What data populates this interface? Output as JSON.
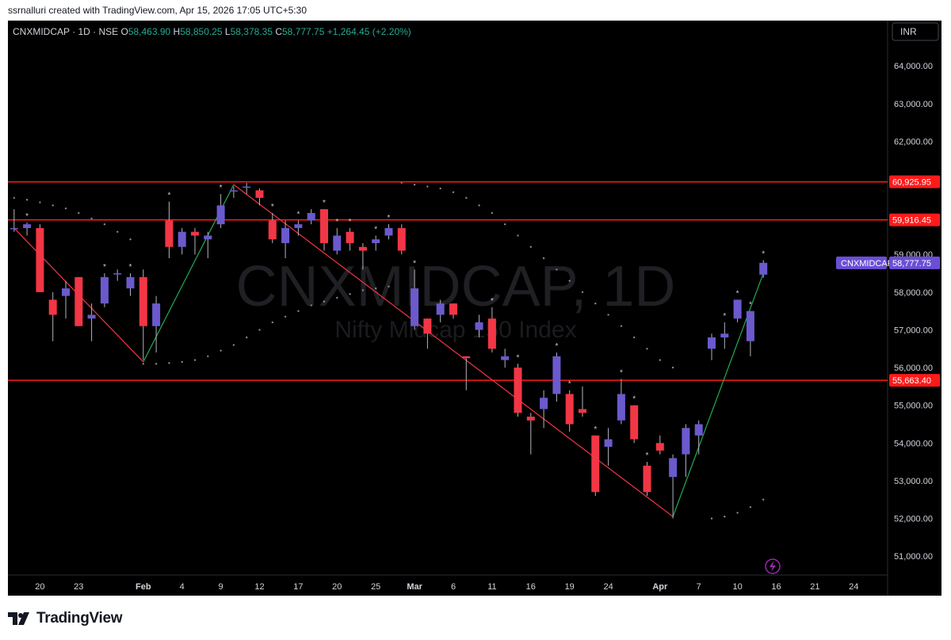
{
  "header": {
    "attribution": "ssrnalluri created with TradingView.com, Apr 15, 2026 17:05 UTC+5:30"
  },
  "legend": {
    "symbol_line": "CNXMIDCAP · 1D · NSE",
    "open_label": "O",
    "open": "58,463.90",
    "high_label": "H",
    "high": "58,850.25",
    "low_label": "L",
    "low": "58,378.35",
    "close_label": "C",
    "close": "58,777.75",
    "change": "+1,264.45 (+2.20%)"
  },
  "currency": "INR",
  "watermark": {
    "title": "CNXMIDCAP, 1D",
    "subtitle": "Nifty Midcap 150 Index"
  },
  "footer": {
    "brand": "TradingView",
    "logo_icon": "tradingview-logo-icon"
  },
  "colors": {
    "background": "#000000",
    "up_candle": "#6a5acd",
    "down_candle": "#f23645",
    "wick": "#b2b5be",
    "level_line": "#ff1a1a",
    "down_trend": "#f23645",
    "up_trend": "#22ab55",
    "psar": "#8a8a8a",
    "marker": "#cfcfcf",
    "axis_text": "#d1d4dc",
    "last_price_bg": "#6a4fd6"
  },
  "chart_data": {
    "type": "candlestick",
    "y_range": [
      50500,
      65200
    ],
    "y_ticks": [
      {
        "v": 51000,
        "label": "51,000.00"
      },
      {
        "v": 52000,
        "label": "52,000.00"
      },
      {
        "v": 53000,
        "label": "53,000.00"
      },
      {
        "v": 54000,
        "label": "54,000.00"
      },
      {
        "v": 55000,
        "label": "55,000.00"
      },
      {
        "v": 56000,
        "label": "56,000.00"
      },
      {
        "v": 57000,
        "label": "57,000.00"
      },
      {
        "v": 58000,
        "label": "58,000.00"
      },
      {
        "v": 59000,
        "label": "59,000.00"
      },
      {
        "v": 60000,
        "label": "60,000.00"
      },
      {
        "v": 61000,
        "label": "61,000.00"
      },
      {
        "v": 62000,
        "label": "62,000.00"
      },
      {
        "v": 63000,
        "label": "63,000.00"
      },
      {
        "v": 64000,
        "label": "64,000.00"
      }
    ],
    "x_ticks": [
      {
        "i": 2,
        "label": "20",
        "bold": false
      },
      {
        "i": 5,
        "label": "23",
        "bold": false
      },
      {
        "i": 10,
        "label": "Feb",
        "bold": true
      },
      {
        "i": 13,
        "label": "4",
        "bold": false
      },
      {
        "i": 16,
        "label": "9",
        "bold": false
      },
      {
        "i": 19,
        "label": "12",
        "bold": false
      },
      {
        "i": 22,
        "label": "17",
        "bold": false
      },
      {
        "i": 25,
        "label": "20",
        "bold": false
      },
      {
        "i": 28,
        "label": "25",
        "bold": false
      },
      {
        "i": 31,
        "label": "Mar",
        "bold": true
      },
      {
        "i": 34,
        "label": "6",
        "bold": false
      },
      {
        "i": 37,
        "label": "11",
        "bold": false
      },
      {
        "i": 40,
        "label": "16",
        "bold": false
      },
      {
        "i": 43,
        "label": "19",
        "bold": false
      },
      {
        "i": 46,
        "label": "24",
        "bold": false
      },
      {
        "i": 50,
        "label": "Apr",
        "bold": true
      },
      {
        "i": 53,
        "label": "7",
        "bold": false
      },
      {
        "i": 56,
        "label": "10",
        "bold": false
      },
      {
        "i": 59,
        "label": "16",
        "bold": false
      },
      {
        "i": 62,
        "label": "21",
        "bold": false
      },
      {
        "i": 65,
        "label": "24",
        "bold": false
      }
    ],
    "levels": [
      {
        "value": 60925.95,
        "label": "60,925.95"
      },
      {
        "value": 59916.45,
        "label": "59,916.45"
      },
      {
        "value": 55663.4,
        "label": "55,663.40"
      }
    ],
    "last_price": {
      "value": 58777.75,
      "label": "58,777.75",
      "name": "CNXMIDCAP"
    },
    "candles": [
      {
        "o": 59700,
        "h": 60200,
        "l": 59600,
        "c": 59700
      },
      {
        "o": 59700,
        "h": 59850,
        "l": 59500,
        "c": 59800
      },
      {
        "o": 59700,
        "h": 59800,
        "l": 58100,
        "c": 58000
      },
      {
        "o": 57800,
        "h": 58000,
        "l": 56700,
        "c": 57400
      },
      {
        "o": 57900,
        "h": 58300,
        "l": 57300,
        "c": 58100
      },
      {
        "o": 58400,
        "h": 58400,
        "l": 57100,
        "c": 57100
      },
      {
        "o": 57300,
        "h": 57700,
        "l": 56700,
        "c": 57400
      },
      {
        "o": 57700,
        "h": 58500,
        "l": 57600,
        "c": 58400
      },
      {
        "o": 58500,
        "h": 58600,
        "l": 58300,
        "c": 58500
      },
      {
        "o": 58100,
        "h": 58500,
        "l": 57900,
        "c": 58400
      },
      {
        "o": 58400,
        "h": 58600,
        "l": 56200,
        "c": 57100
      },
      {
        "o": 57100,
        "h": 57900,
        "l": 56400,
        "c": 57700
      },
      {
        "o": 59900,
        "h": 60400,
        "l": 58900,
        "c": 59200
      },
      {
        "o": 59200,
        "h": 59700,
        "l": 59000,
        "c": 59600
      },
      {
        "o": 59600,
        "h": 59700,
        "l": 59000,
        "c": 59500
      },
      {
        "o": 59400,
        "h": 59600,
        "l": 58900,
        "c": 59500
      },
      {
        "o": 59800,
        "h": 60600,
        "l": 59700,
        "c": 60300
      },
      {
        "o": 60700,
        "h": 60800,
        "l": 60500,
        "c": 60700
      },
      {
        "o": 60800,
        "h": 60900,
        "l": 60600,
        "c": 60800
      },
      {
        "o": 60700,
        "h": 60750,
        "l": 60300,
        "c": 60500
      },
      {
        "o": 59900,
        "h": 60100,
        "l": 59300,
        "c": 59400
      },
      {
        "o": 59300,
        "h": 59900,
        "l": 58900,
        "c": 59700
      },
      {
        "o": 59700,
        "h": 59900,
        "l": 59500,
        "c": 59800
      },
      {
        "o": 59900,
        "h": 60200,
        "l": 59800,
        "c": 60100
      },
      {
        "o": 60200,
        "h": 60200,
        "l": 59100,
        "c": 59300
      },
      {
        "o": 59100,
        "h": 59700,
        "l": 59000,
        "c": 59500
      },
      {
        "o": 59600,
        "h": 59700,
        "l": 59100,
        "c": 59300
      },
      {
        "o": 59200,
        "h": 59300,
        "l": 58600,
        "c": 59100
      },
      {
        "o": 59300,
        "h": 59500,
        "l": 59100,
        "c": 59400
      },
      {
        "o": 59500,
        "h": 59800,
        "l": 59400,
        "c": 59700
      },
      {
        "o": 59700,
        "h": 59800,
        "l": 59000,
        "c": 59100
      },
      {
        "o": 57100,
        "h": 58600,
        "l": 57000,
        "c": 58100
      },
      {
        "o": 57300,
        "h": 57300,
        "l": 56500,
        "c": 56900
      },
      {
        "o": 57400,
        "h": 57800,
        "l": 57200,
        "c": 57700
      },
      {
        "o": 57700,
        "h": 57700,
        "l": 57300,
        "c": 57400
      },
      {
        "o": 56300,
        "h": 56300,
        "l": 55400,
        "c": 56250
      },
      {
        "o": 57000,
        "h": 57400,
        "l": 56800,
        "c": 57200
      },
      {
        "o": 57300,
        "h": 57600,
        "l": 56400,
        "c": 56500
      },
      {
        "o": 56200,
        "h": 56500,
        "l": 56000,
        "c": 56300
      },
      {
        "o": 56000,
        "h": 56100,
        "l": 54700,
        "c": 54800
      },
      {
        "o": 54700,
        "h": 54800,
        "l": 53700,
        "c": 54600
      },
      {
        "o": 54900,
        "h": 55400,
        "l": 54400,
        "c": 55200
      },
      {
        "o": 55300,
        "h": 56400,
        "l": 55100,
        "c": 56300
      },
      {
        "o": 55300,
        "h": 55400,
        "l": 54300,
        "c": 54500
      },
      {
        "o": 54900,
        "h": 55500,
        "l": 54700,
        "c": 54800
      },
      {
        "o": 54200,
        "h": 54200,
        "l": 52600,
        "c": 52700
      },
      {
        "o": 53900,
        "h": 54400,
        "l": 53400,
        "c": 54100
      },
      {
        "o": 54600,
        "h": 55700,
        "l": 54500,
        "c": 55300
      },
      {
        "o": 55000,
        "h": 55000,
        "l": 54000,
        "c": 54100
      },
      {
        "o": 53400,
        "h": 53500,
        "l": 52600,
        "c": 52700
      },
      {
        "o": 54000,
        "h": 54200,
        "l": 53700,
        "c": 53800
      },
      {
        "o": 53100,
        "h": 53700,
        "l": 52000,
        "c": 53600
      },
      {
        "o": 53700,
        "h": 54500,
        "l": 53100,
        "c": 54400
      },
      {
        "o": 54200,
        "h": 54600,
        "l": 53700,
        "c": 54500
      },
      {
        "o": 56500,
        "h": 56900,
        "l": 56200,
        "c": 56800
      },
      {
        "o": 56800,
        "h": 57200,
        "l": 56500,
        "c": 56900
      },
      {
        "o": 57300,
        "h": 57800,
        "l": 57200,
        "c": 57800
      },
      {
        "o": 56700,
        "h": 57500,
        "l": 56300,
        "c": 57500
      },
      {
        "o": 58463.9,
        "h": 58850.25,
        "l": 58378.35,
        "c": 58777.75
      }
    ],
    "markers": [
      1,
      7,
      9,
      12,
      16,
      20,
      22,
      24,
      25,
      26,
      28,
      29,
      31,
      37,
      39,
      42,
      43,
      45,
      47,
      48,
      49,
      55,
      56,
      57,
      58
    ],
    "trend_lines": [
      {
        "kind": "down",
        "from": {
          "i": 0,
          "v": 59700
        },
        "to": {
          "i": 10,
          "v": 56150
        }
      },
      {
        "kind": "up",
        "from": {
          "i": 10,
          "v": 56150
        },
        "to": {
          "i": 17,
          "v": 60850
        }
      },
      {
        "kind": "down",
        "from": {
          "i": 17,
          "v": 60850
        },
        "to": {
          "i": 51,
          "v": 52050
        }
      },
      {
        "kind": "up",
        "from": {
          "i": 51,
          "v": 52050
        },
        "to": {
          "i": 58,
          "v": 58500
        }
      }
    ],
    "psar": [
      {
        "i": 0,
        "v": 60500
      },
      {
        "i": 1,
        "v": 60450
      },
      {
        "i": 2,
        "v": 60380
      },
      {
        "i": 3,
        "v": 60300
      },
      {
        "i": 4,
        "v": 60220
      },
      {
        "i": 5,
        "v": 60100
      },
      {
        "i": 6,
        "v": 59950
      },
      {
        "i": 7,
        "v": 59800
      },
      {
        "i": 8,
        "v": 59600
      },
      {
        "i": 9,
        "v": 59400
      },
      {
        "i": 10,
        "v": 56100
      },
      {
        "i": 11,
        "v": 56100
      },
      {
        "i": 12,
        "v": 56120
      },
      {
        "i": 13,
        "v": 56150
      },
      {
        "i": 14,
        "v": 56200
      },
      {
        "i": 15,
        "v": 56300
      },
      {
        "i": 16,
        "v": 56450
      },
      {
        "i": 17,
        "v": 56600
      },
      {
        "i": 18,
        "v": 56800
      },
      {
        "i": 19,
        "v": 57000
      },
      {
        "i": 20,
        "v": 57200
      },
      {
        "i": 21,
        "v": 57350
      },
      {
        "i": 22,
        "v": 57500
      },
      {
        "i": 23,
        "v": 57650
      },
      {
        "i": 24,
        "v": 57750
      },
      {
        "i": 25,
        "v": 57850
      },
      {
        "i": 26,
        "v": 57950
      },
      {
        "i": 27,
        "v": 58050
      },
      {
        "i": 28,
        "v": 58100
      },
      {
        "i": 29,
        "v": 58150
      },
      {
        "i": 30,
        "v": 60900
      },
      {
        "i": 31,
        "v": 60850
      },
      {
        "i": 32,
        "v": 60800
      },
      {
        "i": 33,
        "v": 60750
      },
      {
        "i": 34,
        "v": 60650
      },
      {
        "i": 35,
        "v": 60500
      },
      {
        "i": 36,
        "v": 60300
      },
      {
        "i": 37,
        "v": 60100
      },
      {
        "i": 38,
        "v": 59800
      },
      {
        "i": 39,
        "v": 59500
      },
      {
        "i": 40,
        "v": 59200
      },
      {
        "i": 41,
        "v": 58900
      },
      {
        "i": 42,
        "v": 58600
      },
      {
        "i": 43,
        "v": 58300
      },
      {
        "i": 44,
        "v": 58000
      },
      {
        "i": 45,
        "v": 57700
      },
      {
        "i": 46,
        "v": 57400
      },
      {
        "i": 47,
        "v": 57100
      },
      {
        "i": 48,
        "v": 56800
      },
      {
        "i": 49,
        "v": 56500
      },
      {
        "i": 50,
        "v": 56200
      },
      {
        "i": 51,
        "v": 56000
      },
      {
        "i": 54,
        "v": 52000
      },
      {
        "i": 55,
        "v": 52050
      },
      {
        "i": 56,
        "v": 52150
      },
      {
        "i": 57,
        "v": 52300
      },
      {
        "i": 58,
        "v": 52500
      }
    ]
  }
}
